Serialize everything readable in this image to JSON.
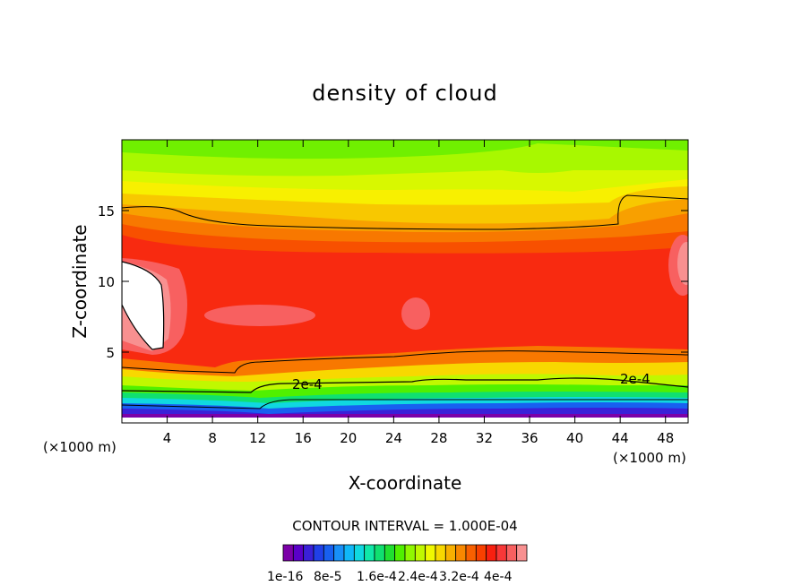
{
  "chart_data": {
    "type": "heatmap",
    "title": "density of cloud",
    "xlabel": "X-coordinate",
    "ylabel": "Z-coordinate",
    "x_unit_left": "(×1000 m)",
    "x_unit_right": "(×1000 m)",
    "xlim": [
      0,
      50
    ],
    "ylim": [
      0,
      20
    ],
    "x_ticks": [
      4,
      8,
      12,
      16,
      20,
      24,
      28,
      32,
      36,
      40,
      44,
      48
    ],
    "y_ticks": [
      5,
      10,
      15
    ],
    "contour_interval_text": "CONTOUR INTERVAL = 1.000E-04",
    "contour_labels": [
      "2e-4",
      "2e-4"
    ],
    "colorbar": {
      "tick_labels": [
        "1e-16",
        "8e-5",
        "1.6e-4",
        "2.4e-4",
        "3.2e-4",
        "4e-4"
      ],
      "colors": [
        "#7b00a8",
        "#5a00c8",
        "#3a20d8",
        "#2040e8",
        "#1860f0",
        "#1890f8",
        "#10b8f8",
        "#10d8e0",
        "#10e8a8",
        "#10e070",
        "#20e030",
        "#50f000",
        "#90f800",
        "#c0f800",
        "#f0f800",
        "#f8d800",
        "#f8b000",
        "#f88800",
        "#f86000",
        "#f84000",
        "#f82010",
        "#f83838",
        "#f86060",
        "#f89090"
      ]
    }
  }
}
